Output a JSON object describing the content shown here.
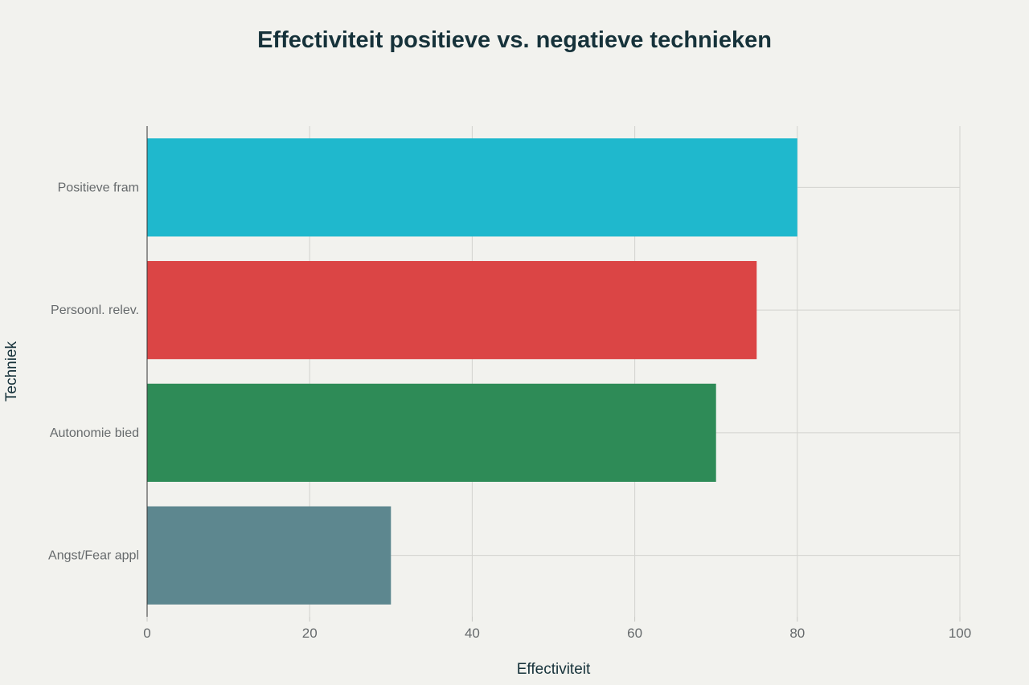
{
  "chart_data": {
    "type": "bar",
    "orientation": "horizontal",
    "title": "Effectiviteit positieve vs. negatieve technieken",
    "xlabel": "Effectiviteit",
    "ylabel": "Techniek",
    "xlim": [
      0,
      100
    ],
    "xticks": [
      0,
      20,
      40,
      60,
      80,
      100
    ],
    "grid": true,
    "categories": [
      "Positieve fram",
      "Persoonl. relev.",
      "Autonomie bied",
      "Angst/Fear appl"
    ],
    "values": [
      80,
      75,
      70,
      30
    ],
    "colors": [
      "#1fb8cd",
      "#db4545",
      "#2e8b57",
      "#5d878f"
    ]
  }
}
